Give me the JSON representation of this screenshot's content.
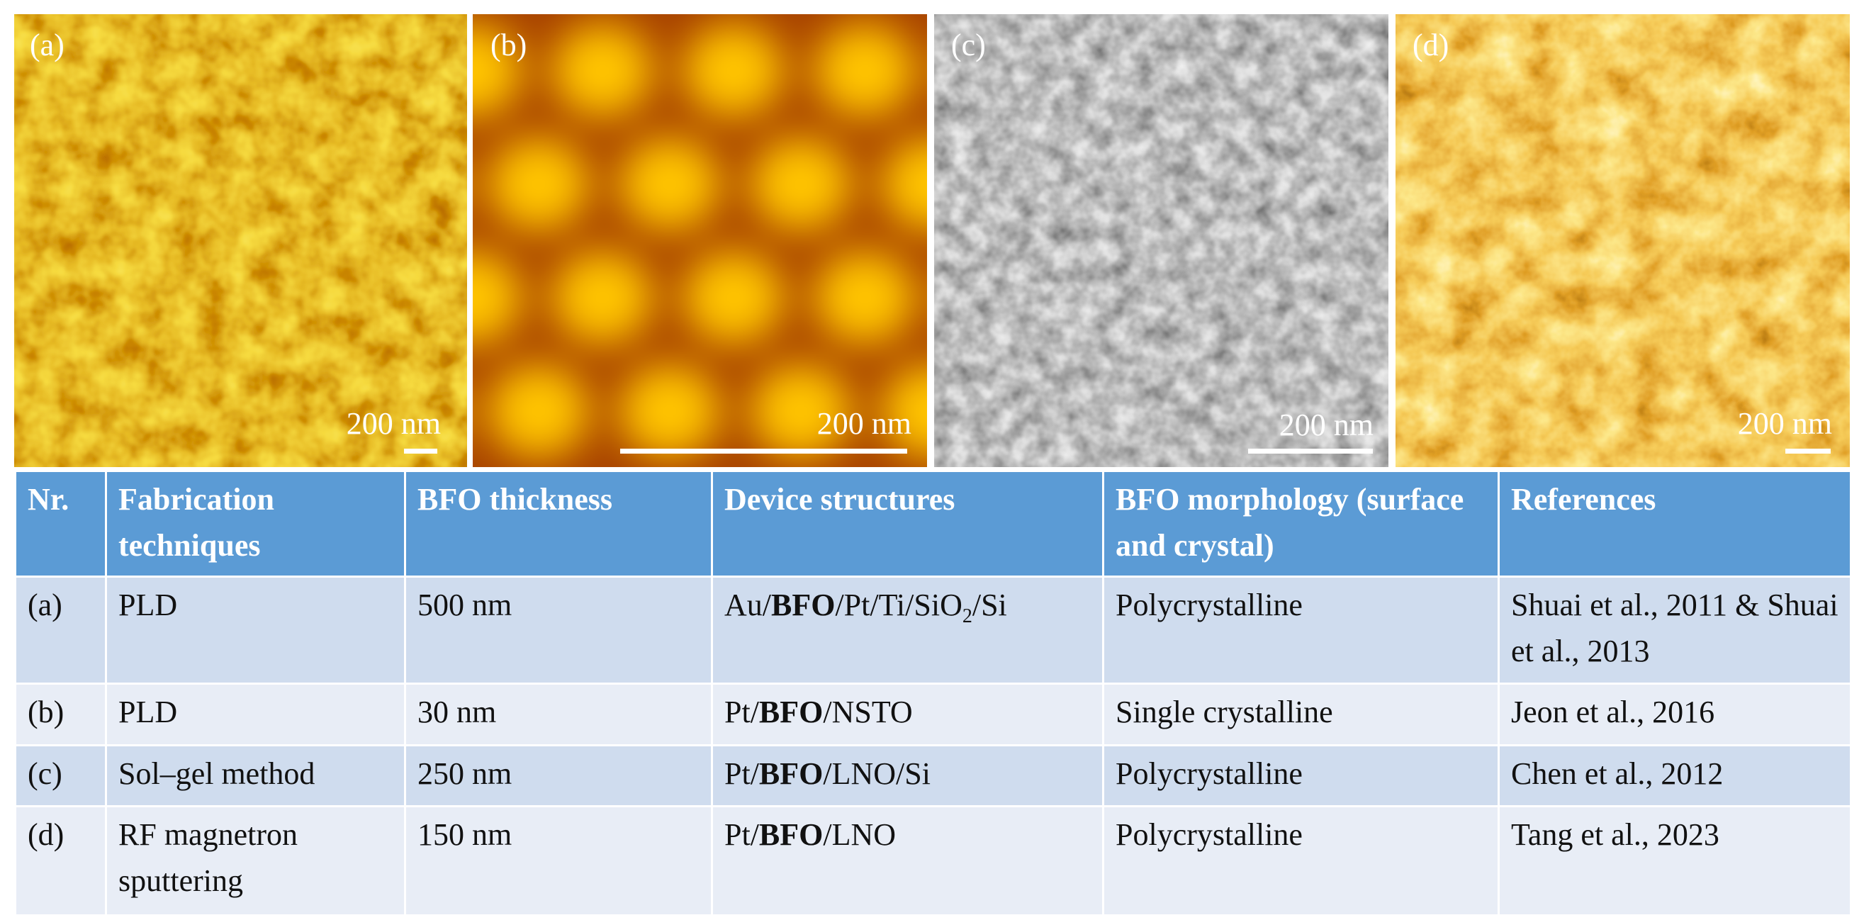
{
  "panels": [
    {
      "label": "(a)",
      "scale": "200 nm"
    },
    {
      "label": "(b)",
      "scale": "200 nm"
    },
    {
      "label": "(c)",
      "scale": "200 nm"
    },
    {
      "label": "(d)",
      "scale": "200 nm"
    }
  ],
  "table": {
    "headers": [
      "Nr.",
      "Fabrication techniques",
      "BFO thickness",
      "Device structures",
      "BFO morphology (surface and crystal)",
      "References"
    ],
    "rows": [
      [
        "(a)",
        "PLD",
        "500 nm",
        [
          "Au/",
          "BFO",
          "/Pt/Ti/SiO",
          "2",
          "/Si"
        ],
        "Polycrystalline",
        "Shuai et al., 2011 & Shuai et al., 2013"
      ],
      [
        "(b)",
        "PLD",
        "30 nm",
        [
          "Pt/",
          "BFO",
          "/NSTO"
        ],
        "Single crystalline",
        "Jeon et al., 2016"
      ],
      [
        "(c)",
        "Sol–gel method",
        "250 nm",
        [
          "Pt/",
          "BFO",
          "/LNO/Si"
        ],
        "Polycrystalline",
        "Chen et al., 2012"
      ],
      [
        "(d)",
        "RF magnetron sputtering",
        "150 nm",
        [
          "Pt/",
          "BFO",
          "/LNO"
        ],
        "Polycrystalline",
        "Tang et al., 2023"
      ]
    ]
  }
}
